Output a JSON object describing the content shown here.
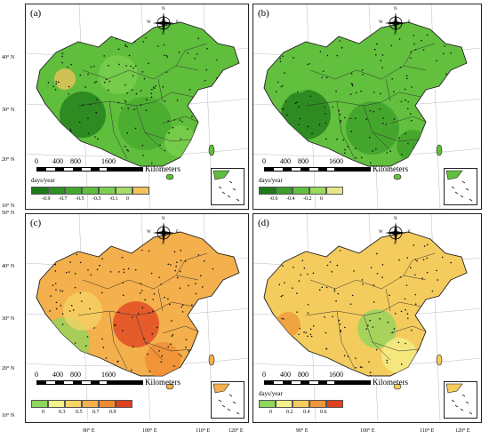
{
  "axes": {
    "latitude_labels": [
      "40° N",
      "30° N",
      "20° N",
      "10° N",
      "50° N",
      "40° N",
      "30° N",
      "20° N",
      "10° N"
    ],
    "longitude_labels": [
      "90° E",
      "100° E",
      "110° E",
      "120° E",
      "90° E",
      "100° E",
      "110° E",
      "120° E"
    ]
  },
  "panels": [
    {
      "label": "(a)",
      "compass": {
        "n": "N",
        "s": "S",
        "w": "W",
        "e": "E"
      },
      "scale": {
        "ticks": [
          "0",
          "400",
          "800",
          "1600"
        ],
        "unit": "Kilometers"
      },
      "legend": {
        "title": "days/year",
        "tick_labels": [
          "-0.9",
          "-0.7",
          "-0.5",
          "-0.3",
          "-0.1",
          "0"
        ],
        "colors": [
          "#1d7a1a",
          "#2f8f22",
          "#45a82d",
          "#5fbe3c",
          "#7ccf4f",
          "#a6dc67",
          "#f4c15b"
        ]
      }
    },
    {
      "label": "(b)",
      "compass": {
        "n": "N",
        "s": "S",
        "w": "W",
        "e": "E"
      },
      "scale": {
        "ticks": [
          "0",
          "400",
          "800",
          "1600"
        ],
        "unit": "Kilometers"
      },
      "legend": {
        "title": "days/year",
        "tick_labels": [
          "-0.6",
          "-0.4",
          "-0.2",
          "0"
        ],
        "colors": [
          "#1d7a1a",
          "#3c9d2a",
          "#62c03e",
          "#9ad95e",
          "#e8e68a"
        ]
      }
    },
    {
      "label": "(c)",
      "compass": {
        "n": "N",
        "s": "S",
        "w": "W",
        "e": "E"
      },
      "scale": {
        "ticks": [
          "0",
          "400",
          "800",
          "1600"
        ],
        "unit": "Kilometers"
      },
      "legend": {
        "title": "",
        "tick_labels": [
          "0",
          "0.3",
          "0.5",
          "0.7",
          "0.9"
        ],
        "colors": [
          "#8ed65c",
          "#f4f08a",
          "#f6d466",
          "#f4b04c",
          "#ef8a33",
          "#e0401f"
        ]
      }
    },
    {
      "label": "(d)",
      "compass": {
        "n": "N",
        "s": "S",
        "w": "W",
        "e": "E"
      },
      "scale": {
        "ticks": [
          "0",
          "400",
          "800",
          "1600"
        ],
        "unit": "Kilometers"
      },
      "legend": {
        "title": "days/year",
        "tick_labels": [
          "0",
          "0.2",
          "0.4",
          "0.6"
        ],
        "colors": [
          "#8ed65c",
          "#f4f08a",
          "#f4cc5e",
          "#ee9638",
          "#e0401f"
        ]
      }
    }
  ]
}
